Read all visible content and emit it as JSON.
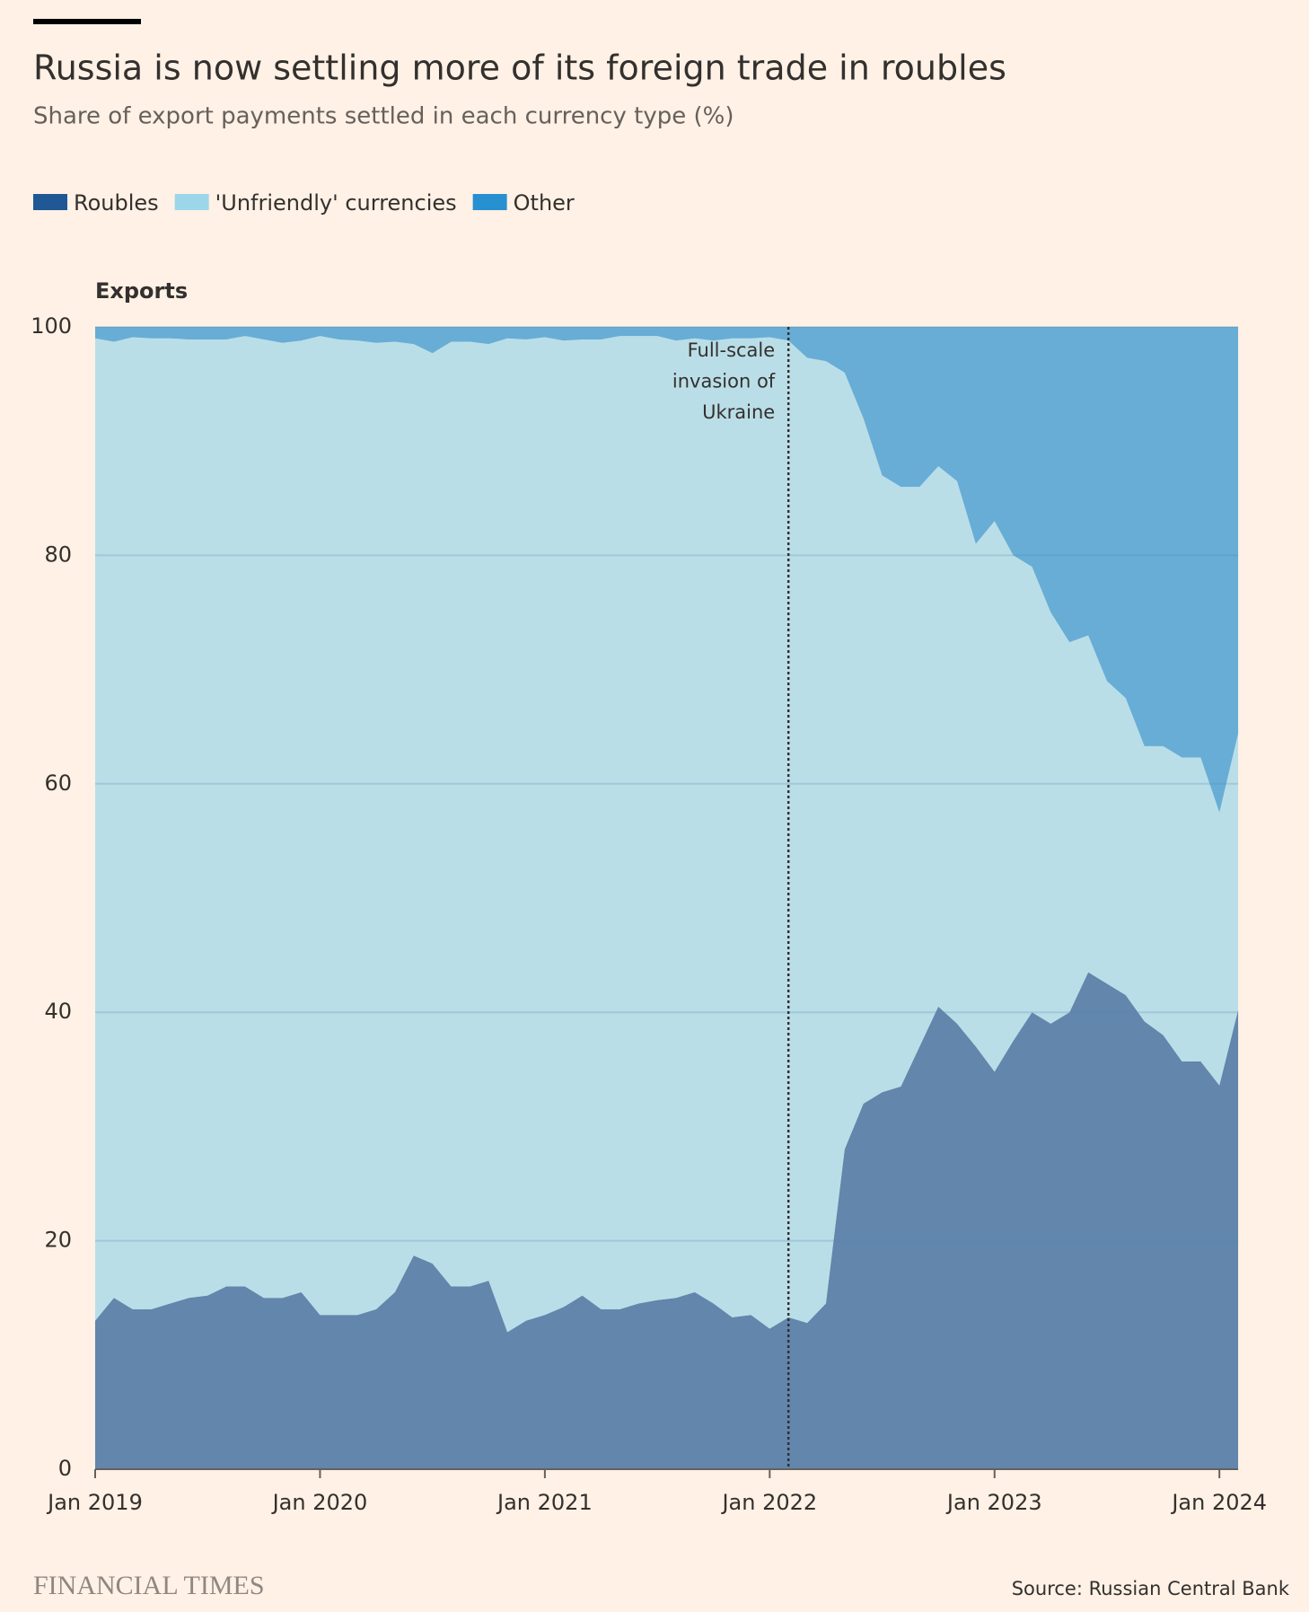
{
  "chart_data": {
    "type": "stacked_area",
    "title": "Russia is now settling more of its foreign trade in roubles",
    "subtitle": "Share of export payments settled in each currency type (%)",
    "panel_title": "Exports",
    "source": "Source: Russian Central Bank",
    "brand": "FINANCIAL TIMES",
    "x": [
      "2019-01",
      "2019-02",
      "2019-03",
      "2019-04",
      "2019-05",
      "2019-06",
      "2019-07",
      "2019-08",
      "2019-09",
      "2019-10",
      "2019-11",
      "2019-12",
      "2020-01",
      "2020-02",
      "2020-03",
      "2020-04",
      "2020-05",
      "2020-06",
      "2020-07",
      "2020-08",
      "2020-09",
      "2020-10",
      "2020-11",
      "2020-12",
      "2021-01",
      "2021-02",
      "2021-03",
      "2021-04",
      "2021-05",
      "2021-06",
      "2021-07",
      "2021-08",
      "2021-09",
      "2021-10",
      "2021-11",
      "2021-12",
      "2022-01",
      "2022-02",
      "2022-03",
      "2022-04",
      "2022-05",
      "2022-06",
      "2022-07",
      "2022-08",
      "2022-09",
      "2022-10",
      "2022-11",
      "2022-12",
      "2023-01",
      "2023-02",
      "2023-03",
      "2023-04",
      "2023-05",
      "2023-06",
      "2023-07",
      "2023-08",
      "2023-09",
      "2023-10",
      "2023-11",
      "2023-12",
      "2024-01",
      "2024-02"
    ],
    "series": [
      {
        "name": "Roubles",
        "color": "#1f5894",
        "values": [
          13,
          15,
          14,
          14,
          14.5,
          15,
          15.2,
          16,
          16,
          15,
          15,
          15.5,
          13.5,
          13.5,
          13.5,
          14,
          15.5,
          18.7,
          18,
          16,
          16,
          16.5,
          12,
          13,
          13.5,
          14.2,
          15.2,
          14,
          14,
          14.5,
          14.8,
          15,
          15.5,
          14.5,
          13.3,
          13.5,
          12.3,
          13.3,
          12.8,
          14.5,
          28,
          32,
          33,
          33.5,
          37,
          40.5,
          39,
          37,
          34.8,
          37.5,
          40,
          39,
          40,
          43.5,
          42.5,
          41.5,
          39.2,
          38,
          35.7,
          35.7,
          33.6,
          40.2
        ]
      },
      {
        "name": "'Unfriendly' currencies",
        "color": "#9dd6e8",
        "values": [
          86,
          83.7,
          85.1,
          85,
          84.5,
          83.9,
          83.7,
          82.9,
          83.2,
          83.9,
          83.6,
          83.3,
          85.7,
          85.4,
          85.3,
          84.6,
          83.2,
          79.8,
          79.7,
          82.7,
          82.7,
          82,
          87,
          85.9,
          85.6,
          84.6,
          83.7,
          84.9,
          85.2,
          84.7,
          84.4,
          83.8,
          83.5,
          84.3,
          85.7,
          85.5,
          86.8,
          85.5,
          84.5,
          82.5,
          68,
          60,
          54,
          52.5,
          49,
          47.3,
          47.5,
          44,
          48.2,
          42.5,
          39,
          36,
          32.4,
          29.5,
          26.5,
          26,
          24.1,
          25.3,
          26.6,
          26.6,
          23.9,
          24.2
        ]
      },
      {
        "name": "Other",
        "color": "#2690d0",
        "values": [
          1,
          1.3,
          0.9,
          1,
          1,
          1.1,
          1.1,
          1.1,
          0.8,
          1.1,
          1.4,
          1.2,
          0.8,
          1.1,
          1.2,
          1.4,
          1.3,
          1.5,
          2.3,
          1.3,
          1.3,
          1.5,
          1,
          1.1,
          0.9,
          1.2,
          1.1,
          1.1,
          0.8,
          0.8,
          0.8,
          1.2,
          1,
          1.2,
          1,
          1,
          0.9,
          1.2,
          2.7,
          3,
          4,
          8,
          13,
          14,
          14,
          12.2,
          13.5,
          19,
          17,
          20,
          21,
          25,
          27.6,
          27,
          31,
          32.5,
          36.7,
          36.7,
          37.7,
          37.7,
          42.5,
          35.6
        ]
      }
    ],
    "ylim": [
      0,
      100
    ],
    "yticks": [
      0,
      20,
      40,
      60,
      80,
      100
    ],
    "xticks": [
      {
        "value": "2019-01",
        "label": "Jan 2019"
      },
      {
        "value": "2020-01",
        "label": "Jan 2020"
      },
      {
        "value": "2021-01",
        "label": "Jan 2021"
      },
      {
        "value": "2022-01",
        "label": "Jan 2022"
      },
      {
        "value": "2023-01",
        "label": "Jan 2023"
      },
      {
        "value": "2024-01",
        "label": "Jan 2024"
      }
    ],
    "grid": true,
    "annotation": {
      "x": "2022-02",
      "text": [
        "Full-scale",
        "invasion of",
        "Ukraine"
      ]
    }
  }
}
